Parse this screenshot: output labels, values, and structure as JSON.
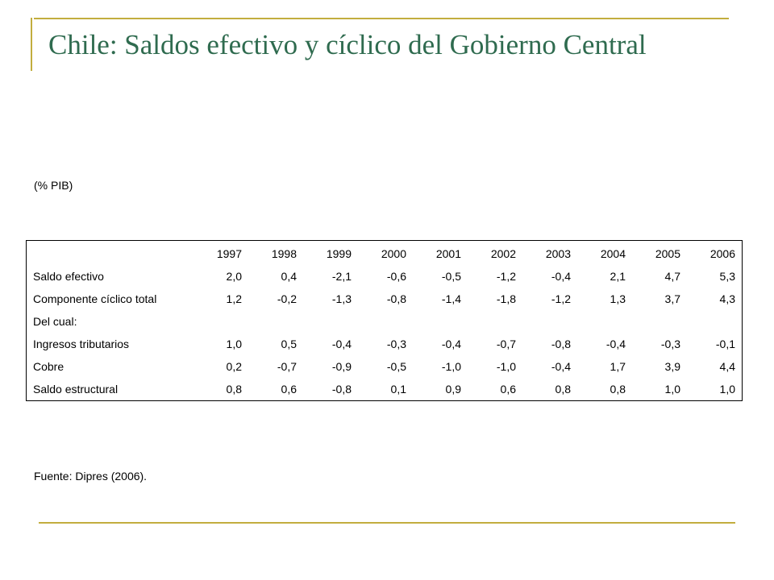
{
  "title": "Chile: Saldos efectivo y cíclico del Gobierno Central",
  "unit_note": "(% PIB)",
  "source_note": "Fuente: Dipres (2006).",
  "table": {
    "years": [
      "1997",
      "1998",
      "1999",
      "2000",
      "2001",
      "2002",
      "2003",
      "2004",
      "2005",
      "2006"
    ],
    "rows": [
      {
        "label": "Saldo efectivo",
        "values": [
          "2,0",
          "0,4",
          "-2,1",
          "-0,6",
          "-0,5",
          "-1,2",
          "-0,4",
          "2,1",
          "4,7",
          "5,3"
        ]
      },
      {
        "label": "Componente cíclico total",
        "values": [
          "1,2",
          "-0,2",
          "-1,3",
          "-0,8",
          "-1,4",
          "-1,8",
          "-1,2",
          "1,3",
          "3,7",
          "4,3"
        ]
      },
      {
        "label": "Del cual:",
        "values": [
          "",
          "",
          "",
          "",
          "",
          "",
          "",
          "",
          "",
          ""
        ]
      },
      {
        "label": "Ingresos tributarios",
        "values": [
          "1,0",
          "0,5",
          "-0,4",
          "-0,3",
          "-0,4",
          "-0,7",
          "-0,8",
          "-0,4",
          "-0,3",
          "-0,1"
        ]
      },
      {
        "label": "Cobre",
        "values": [
          "0,2",
          "-0,7",
          "-0,9",
          "-0,5",
          "-1,0",
          "-1,0",
          "-0,4",
          "1,7",
          "3,9",
          "4,4"
        ]
      },
      {
        "label": "Saldo estructural",
        "values": [
          "0,8",
          "0,6",
          "-0,8",
          "0,1",
          "0,9",
          "0,6",
          "0,8",
          "0,8",
          "1,0",
          "1,0"
        ]
      }
    ]
  }
}
